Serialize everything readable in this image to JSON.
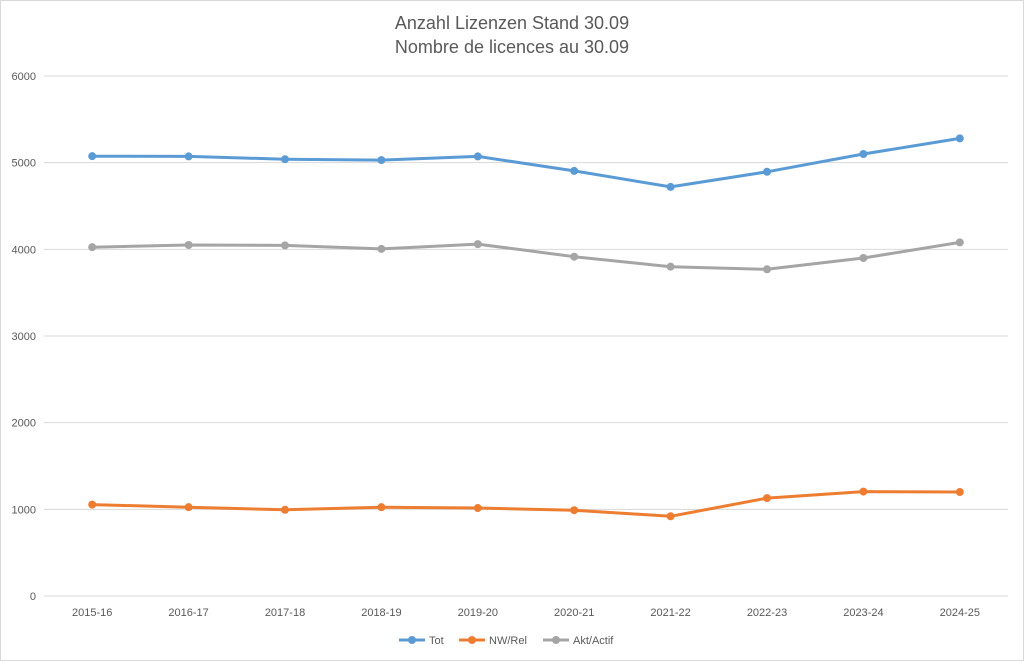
{
  "chart_data": {
    "type": "line",
    "title": "Anzahl Lizenzen Stand 30.09",
    "subtitle": "Nombre de licences au 30.09",
    "categories": [
      "2015-16",
      "2016-17",
      "2017-18",
      "2018-19",
      "2019-20",
      "2020-21",
      "2021-22",
      "2022-23",
      "2023-24",
      "2024-25"
    ],
    "ylim": [
      0,
      6000
    ],
    "yticks": [
      "0",
      "1000",
      "2000",
      "3000",
      "4000",
      "5000",
      "6000"
    ],
    "grid": true,
    "legend_position": "bottom",
    "series": [
      {
        "name": "Tot",
        "color": "#5b9bd5",
        "values": [
          5075,
          5072,
          5040,
          5030,
          5072,
          4905,
          4720,
          4895,
          5100,
          5280
        ]
      },
      {
        "name": "NW/Rel",
        "color": "#ed7d31",
        "values": [
          1055,
          1025,
          995,
          1025,
          1015,
          990,
          920,
          1130,
          1205,
          1200
        ]
      },
      {
        "name": "Akt/Actif",
        "color": "#a5a5a5",
        "values": [
          4025,
          4050,
          4045,
          4005,
          4060,
          3915,
          3800,
          3770,
          3900,
          4080
        ]
      }
    ]
  }
}
